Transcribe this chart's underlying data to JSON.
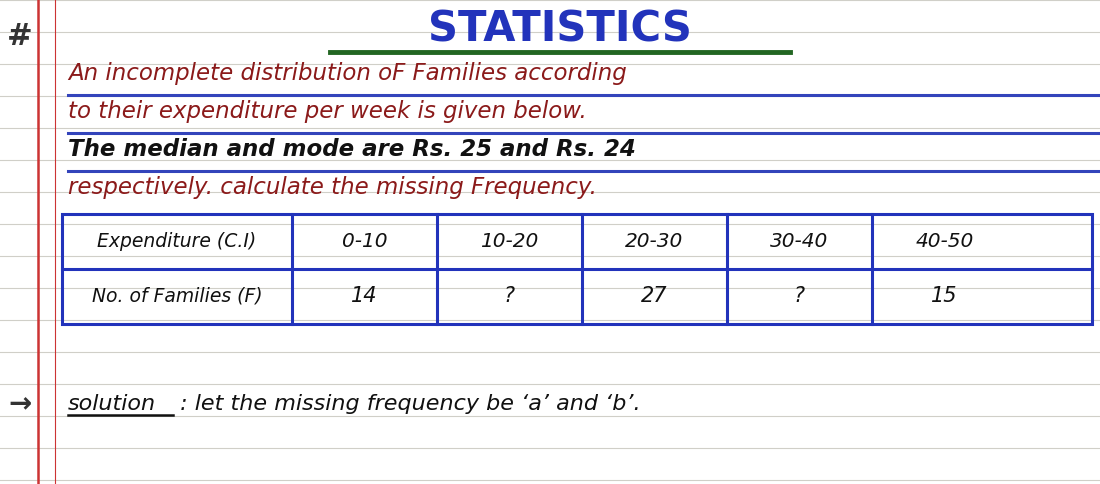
{
  "bg_color": "#ffffff",
  "line_color": "#d0cfc8",
  "red_margin_color": "#cc3333",
  "title": "STATISTICS",
  "title_color": "#2233bb",
  "title_underline_color": "#226622",
  "hash_color": "#333333",
  "problem_line1": "An incomplete distribution oF Families according",
  "problem_line2": "to their expenditure per week is given below.",
  "problem_line3": "The median and mode are Rs. 25 and Rs. 24",
  "problem_line4": "respectively. calculate the missing Frequency.",
  "problem_color": "#8b1a1a",
  "line3_color": "#111111",
  "blue_underline_color": "#3344bb",
  "table_border_color": "#2233bb",
  "table_header_row": [
    "Expenditure (C.I)",
    "0-10",
    "10-20",
    "20-30",
    "30-40",
    "40-50"
  ],
  "table_data_row": [
    "No. of Families (F)",
    "14",
    "?",
    "27",
    "?",
    "15"
  ],
  "table_text_color": "#111111",
  "solution_arrow": "→",
  "solution_word": "solution",
  "solution_rest": " : let the missing frequency be ‘a’ and ‘b’.",
  "solution_color": "#111111"
}
